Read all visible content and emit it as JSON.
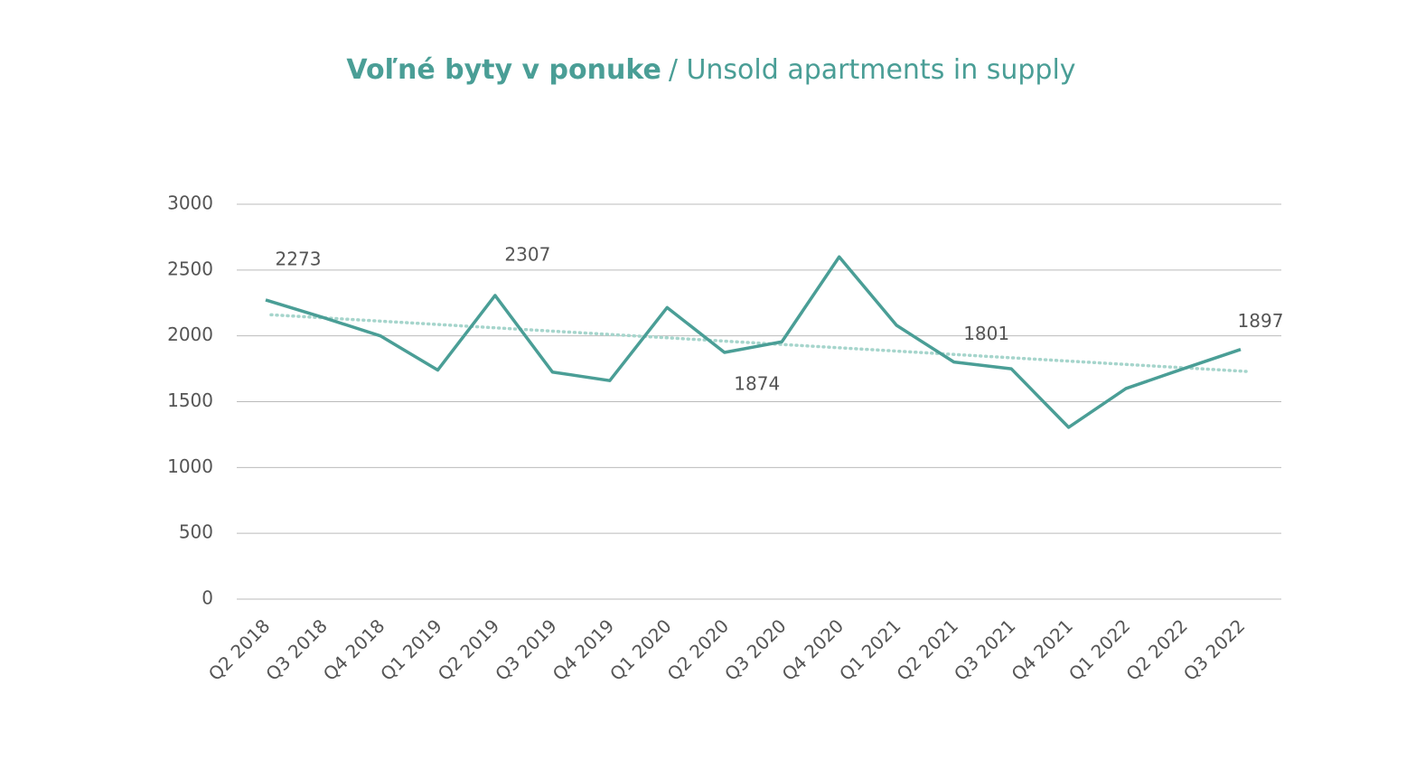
{
  "chart_data": {
    "type": "line",
    "title": "Voľné byty v ponuke",
    "subtitle": "/ Unsold apartments in supply",
    "categories": [
      "Q2 2018",
      "Q3 2018",
      "Q4 2018",
      "Q1 2019",
      "Q2 2019",
      "Q3 2019",
      "Q4 2019",
      "Q1 2020",
      "Q2 2020",
      "Q3 2020",
      "Q4 2020",
      "Q1 2021",
      "Q2 2021",
      "Q3 2021",
      "Q4 2021",
      "Q1 2022",
      "Q2 2022",
      "Q3 2022"
    ],
    "series": [
      {
        "color": "#4a9e96",
        "values": [
          2273,
          2140,
          2000,
          1740,
          2307,
          1725,
          1660,
          2215,
          1874,
          1955,
          2600,
          2080,
          1801,
          1750,
          1305,
          1600,
          1750,
          1897
        ]
      }
    ],
    "labeled_points": [
      0,
      4,
      8,
      12,
      17
    ],
    "trendline": {
      "color": "#a6d5cc",
      "start": 2160,
      "end": 1730
    },
    "ylim": [
      0,
      3000
    ],
    "yticks": [
      0,
      500,
      1000,
      1500,
      2000,
      2500,
      3000
    ],
    "grid": true
  }
}
